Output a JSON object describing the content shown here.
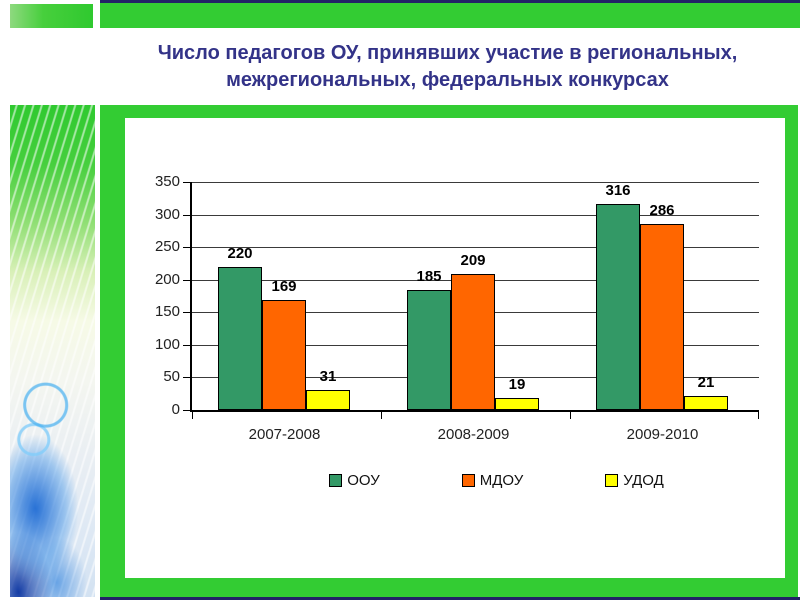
{
  "title": {
    "line1": "Число педагогов ОУ, принявших участие в региональных,",
    "line2": "межрегиональных, федеральных конкурсах"
  },
  "chart_data": {
    "type": "bar",
    "title": "",
    "xlabel": "",
    "ylabel": "",
    "categories": [
      "2007-2008",
      "2008-2009",
      "2009-2010"
    ],
    "series": [
      {
        "name": "ООУ",
        "color": "#339966",
        "values": [
          220,
          185,
          316
        ]
      },
      {
        "name": "МДОУ",
        "color": "#FF6600",
        "values": [
          169,
          209,
          286
        ]
      },
      {
        "name": "УДОД",
        "color": "#FFFF00",
        "values": [
          31,
          19,
          21
        ]
      }
    ],
    "ylim": [
      0,
      350
    ],
    "yticks": [
      0,
      50,
      100,
      150,
      200,
      250,
      300,
      350
    ],
    "grid": true,
    "legend_position": "bottom"
  },
  "colors": {
    "slide_accent_green": "#33cc33",
    "top_bottom_line_navy": "#222266",
    "title_text": "#333388",
    "bar_green": "#339966",
    "bar_orange": "#FF6600",
    "bar_yellow": "#FFFF00",
    "axis_text": "#222222"
  },
  "icons": {
    "legend_swatch_green": "square-swatch-icon",
    "legend_swatch_orange": "square-swatch-icon",
    "legend_swatch_yellow": "square-swatch-icon"
  }
}
